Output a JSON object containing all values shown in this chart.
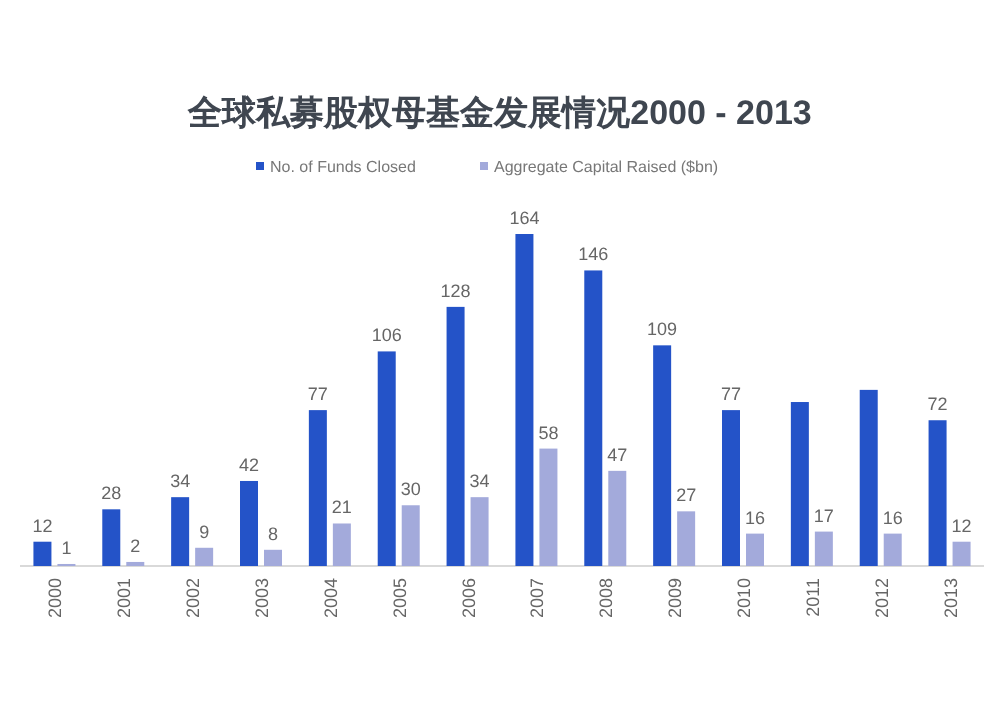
{
  "chart_data": {
    "type": "bar",
    "title": "全球私募股权母基金发展情况2000 - 2013",
    "categories": [
      "2000",
      "2001",
      "2002",
      "2003",
      "2004",
      "2005",
      "2006",
      "2007",
      "2008",
      "2009",
      "2010",
      "2011",
      "2012",
      "2013"
    ],
    "series": [
      {
        "name": "No. of Funds Closed",
        "color": "#2453c8",
        "values": [
          12,
          28,
          34,
          42,
          77,
          106,
          128,
          164,
          146,
          109,
          77,
          81,
          87,
          72
        ],
        "value_labels": [
          "12",
          "28",
          "34",
          "42",
          "77",
          "106",
          "128",
          "164",
          "146",
          "109",
          "77",
          null,
          null,
          "72"
        ]
      },
      {
        "name": "Aggregate Capital Raised ($bn)",
        "color": "#a3aadb",
        "values": [
          1,
          2,
          9,
          8,
          21,
          30,
          34,
          58,
          47,
          27,
          16,
          17,
          16,
          12
        ],
        "value_labels": [
          "1",
          "2",
          "9",
          "8",
          "21",
          "30",
          "34",
          "58",
          "47",
          "27",
          "16",
          "17",
          "16",
          "12"
        ]
      }
    ],
    "tick_labels": "x",
    "legend": "top",
    "grid": false
  }
}
